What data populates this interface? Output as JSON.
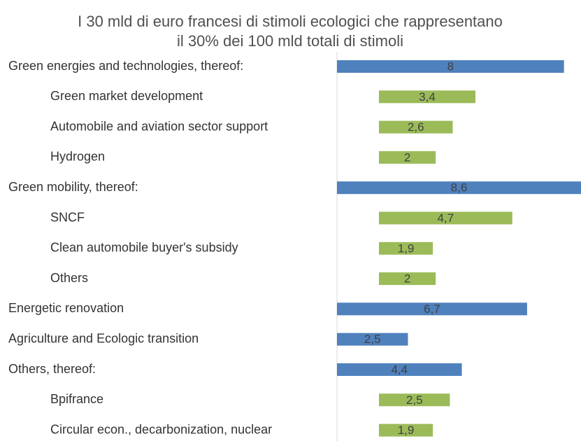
{
  "chart_data": {
    "type": "hbar",
    "title": [
      "I 30 mld di euro francesi di stimoli ecologici che rappresentano",
      "il 30% dei 100 mld totali di stimoli"
    ],
    "categories": [
      "Green energies and technologies, thereof:",
      "Green market development",
      "Automobile and aviation sector support",
      "Hydrogen",
      "Green mobility, thereof:",
      "SNCF",
      "Clean automobile buyer's subsidy",
      "Others",
      "Energetic renovation",
      "Agriculture and Ecologic transition",
      "Others, thereof:",
      "Bpifrance",
      "Circular econ., decarbonization, nuclear"
    ],
    "values": [
      8,
      3.4,
      2.6,
      2,
      8.6,
      4.7,
      1.9,
      2,
      6.7,
      2.5,
      4.4,
      2.5,
      1.9
    ],
    "value_labels": [
      "8",
      "3,4",
      "2,6",
      "2",
      "8,6",
      "4,7",
      "1,9",
      "2",
      "6,7",
      "2,5",
      "4,4",
      "2,5",
      "1,9"
    ],
    "colors": [
      "#4f81bd",
      "#9bbb59",
      "#9bbb59",
      "#9bbb59",
      "#4f81bd",
      "#9bbb59",
      "#9bbb59",
      "#9bbb59",
      "#4f81bd",
      "#4f81bd",
      "#4f81bd",
      "#9bbb59",
      "#9bbb59"
    ],
    "xlim": [
      0,
      8.6
    ]
  }
}
